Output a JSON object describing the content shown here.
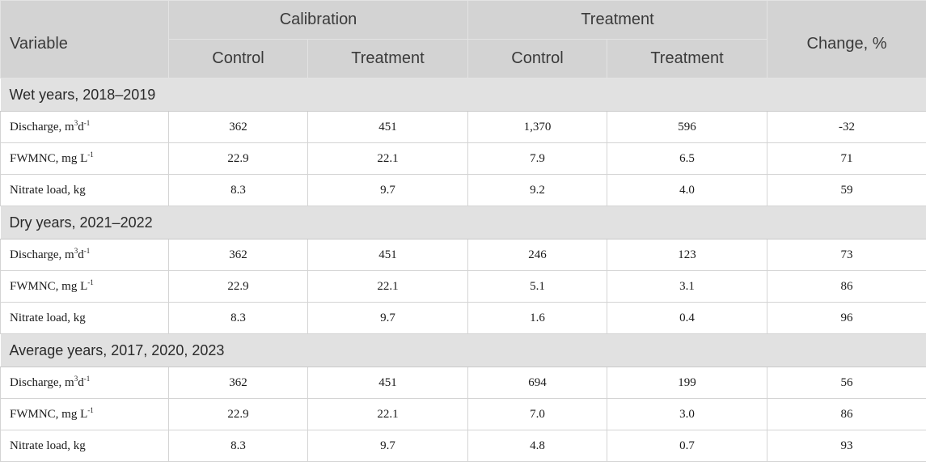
{
  "header": {
    "variable": "Variable",
    "calibration": "Calibration",
    "treatment_period": "Treatment",
    "change": "Change, %",
    "control_1": "Control",
    "treatment_1": "Treatment",
    "control_2": "Control",
    "treatment_2": "Treatment"
  },
  "sections": [
    {
      "title": "Wet years, 2018–2019",
      "rows": [
        {
          "label_main": "Discharge, m",
          "label_sup1": "3",
          "label_mid": "d",
          "label_sup2": "-1",
          "values": [
            "362",
            "451",
            "1,370",
            "596",
            "-32"
          ]
        },
        {
          "label_main": "FWMNC, mg L",
          "label_sup1": "-1",
          "label_mid": "",
          "label_sup2": "",
          "values": [
            "22.9",
            "22.1",
            "7.9",
            "6.5",
            "71"
          ]
        },
        {
          "label_main": "Nitrate load, kg",
          "label_sup1": "",
          "label_mid": "",
          "label_sup2": "",
          "values": [
            "8.3",
            "9.7",
            "9.2",
            "4.0",
            "59"
          ]
        }
      ]
    },
    {
      "title": "Dry years, 2021–2022",
      "rows": [
        {
          "label_main": "Discharge, m",
          "label_sup1": "3",
          "label_mid": "d",
          "label_sup2": "-1",
          "values": [
            "362",
            "451",
            "246",
            "123",
            "73"
          ]
        },
        {
          "label_main": "FWMNC, mg L",
          "label_sup1": "-1",
          "label_mid": "",
          "label_sup2": "",
          "values": [
            "22.9",
            "22.1",
            "5.1",
            "3.1",
            "86"
          ]
        },
        {
          "label_main": "Nitrate load, kg",
          "label_sup1": "",
          "label_mid": "",
          "label_sup2": "",
          "values": [
            "8.3",
            "9.7",
            "1.6",
            "0.4",
            "96"
          ]
        }
      ]
    },
    {
      "title": "Average years, 2017, 2020, 2023",
      "rows": [
        {
          "label_main": "Discharge, m",
          "label_sup1": "3",
          "label_mid": "d",
          "label_sup2": "-1",
          "values": [
            "362",
            "451",
            "694",
            "199",
            "56"
          ]
        },
        {
          "label_main": "FWMNC, mg L",
          "label_sup1": "-1",
          "label_mid": "",
          "label_sup2": "",
          "values": [
            "22.9",
            "22.1",
            "7.0",
            "3.0",
            "86"
          ]
        },
        {
          "label_main": "Nitrate load, kg",
          "label_sup1": "",
          "label_mid": "",
          "label_sup2": "",
          "values": [
            "8.3",
            "9.7",
            "4.8",
            "0.7",
            "93"
          ]
        }
      ]
    }
  ]
}
